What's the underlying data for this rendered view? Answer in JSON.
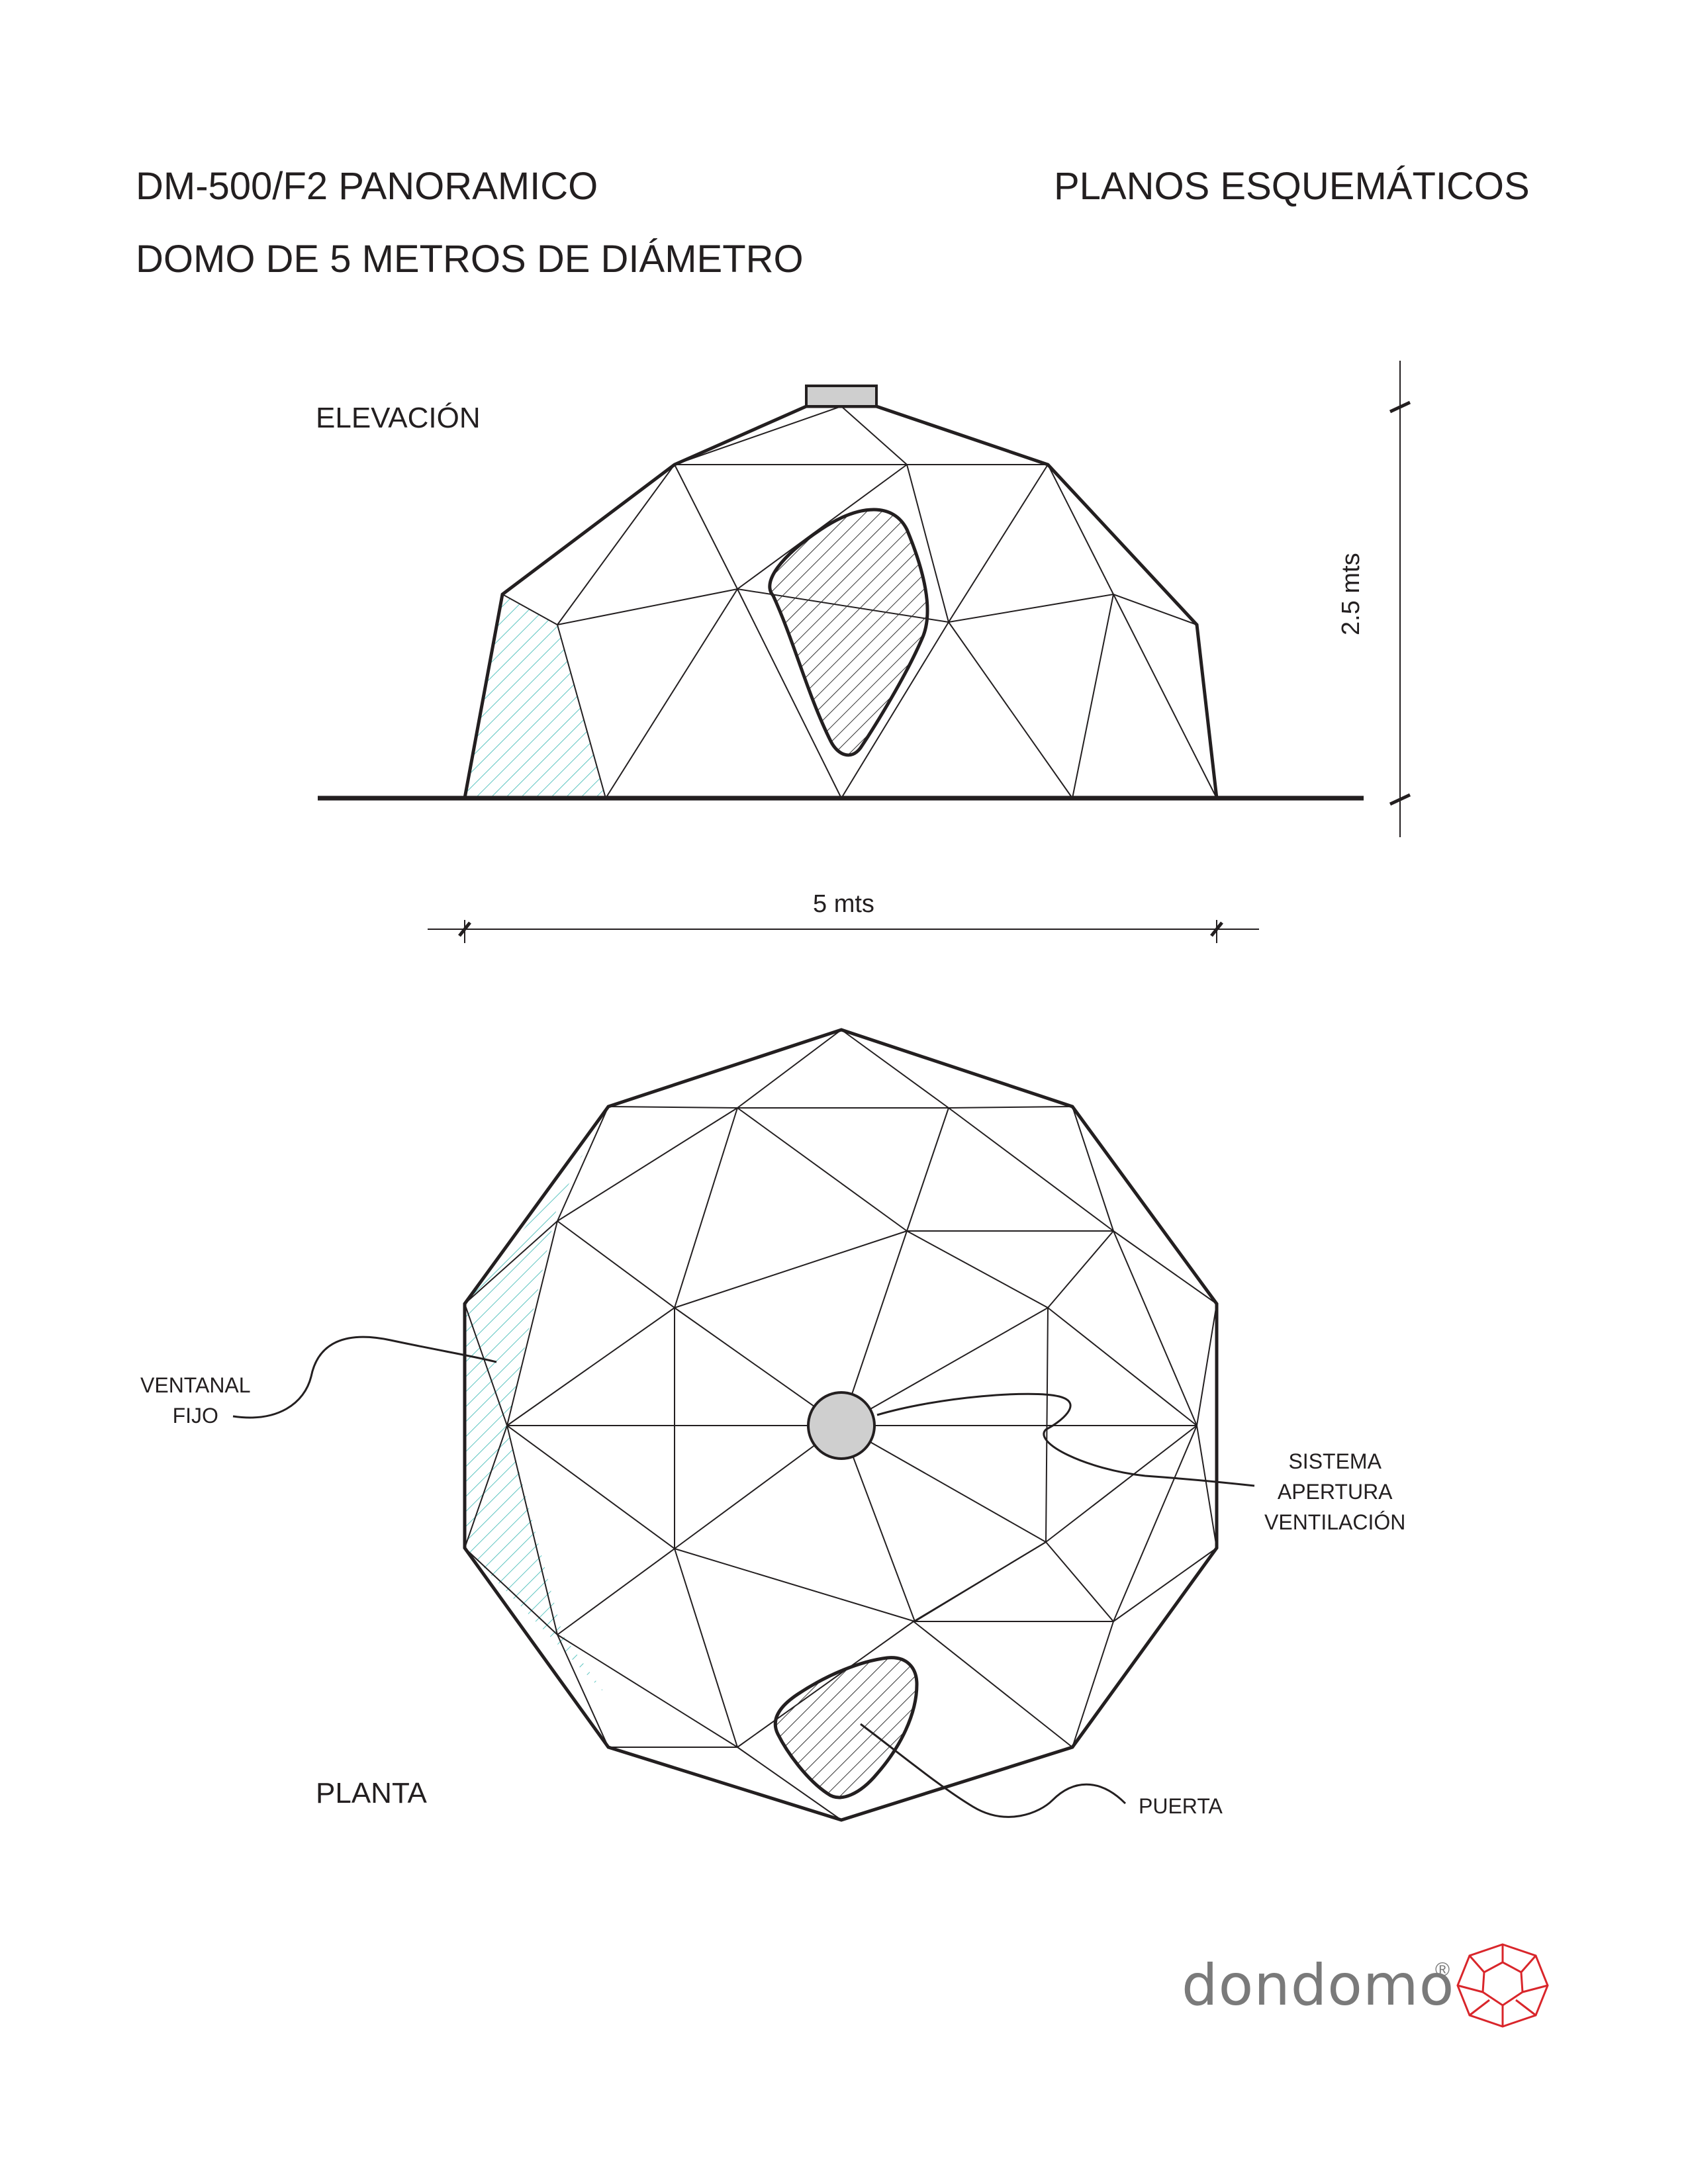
{
  "header": {
    "model_title": "DM-500/F2 PANORAMICO",
    "subtitle": "DOMO DE 5 METROS DE DIÁMETRO",
    "doc_type": "PLANOS ESQUEMÁTICOS"
  },
  "elevation": {
    "label": "ELEVACIÓN",
    "height_dimension": "2.5 mts",
    "width_dimension": "5 mts"
  },
  "plan": {
    "label": "PLANTA",
    "callouts": {
      "window": "VENTANAL\nFIJO",
      "vent": "SISTEMA\nAPERTURA\nVENTILACIÓN",
      "door": "PUERTA"
    }
  },
  "brand": {
    "name": "dondomo",
    "registered": "®",
    "logo_color": "#d9262b",
    "text_color": "#7a7a7a",
    "window_hatch_color": "#5ec5c1"
  }
}
